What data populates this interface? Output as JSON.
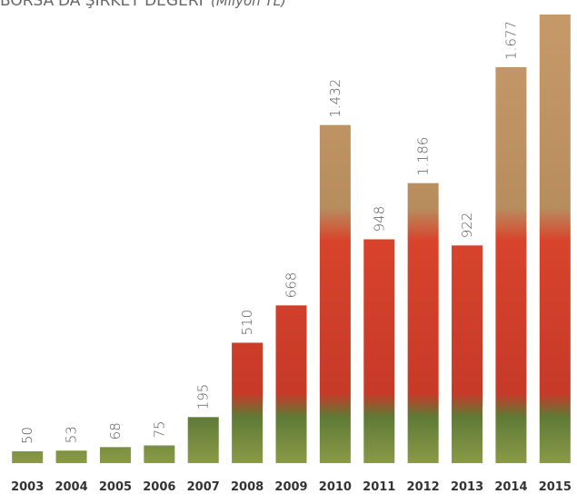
{
  "chart_data": {
    "type": "bar",
    "title": "BORSA'DA ŞİRKET DEĞERİ",
    "subtitle": "(Milyon TL)",
    "categories": [
      "2003",
      "2004",
      "2005",
      "2006",
      "2007",
      "2008",
      "2009",
      "2010",
      "2011",
      "2012",
      "2013",
      "2014",
      "2015"
    ],
    "values": [
      50,
      53,
      68,
      75,
      195,
      510,
      668,
      1432,
      948,
      1186,
      922,
      1677,
      1900
    ],
    "value_labels": [
      "50",
      "53",
      "68",
      "75",
      "195",
      "510",
      "668",
      "1.432",
      "948",
      "1.186",
      "922",
      "1.677",
      null
    ],
    "ylim": [
      0,
      2000
    ]
  }
}
